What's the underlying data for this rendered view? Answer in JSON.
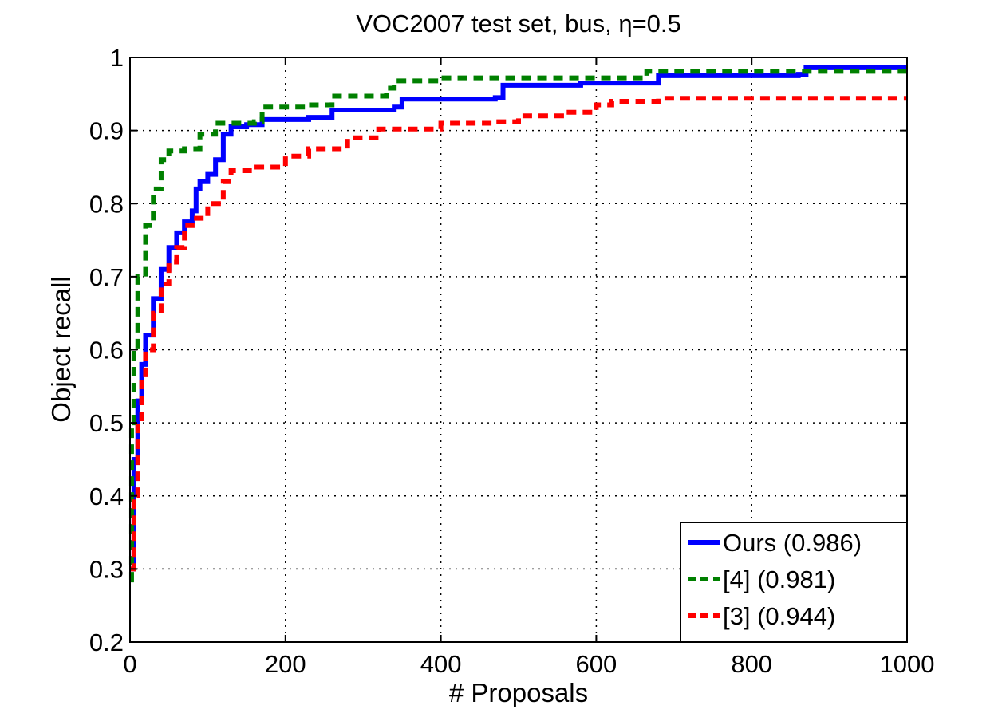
{
  "chart_data": {
    "type": "line",
    "title": "VOC2007 test set, bus, η=0.5",
    "xlabel": "# Proposals",
    "ylabel": "Object recall",
    "xlim": [
      0,
      1000
    ],
    "ylim": [
      0.2,
      1.0
    ],
    "xticks": [
      "0",
      "200",
      "400",
      "600",
      "800",
      "1000"
    ],
    "yticks": [
      "0.2",
      "0.3",
      "0.4",
      "0.5",
      "0.6",
      "0.7",
      "0.8",
      "0.9",
      "1"
    ],
    "grid": true,
    "legend_position": "bottom-right",
    "series": [
      {
        "name": "Ours (0.986)",
        "color": "#0000ff",
        "dash": "solid",
        "points": [
          [
            1,
            0.3
          ],
          [
            5,
            0.45
          ],
          [
            10,
            0.53
          ],
          [
            15,
            0.58
          ],
          [
            20,
            0.62
          ],
          [
            30,
            0.67
          ],
          [
            40,
            0.71
          ],
          [
            50,
            0.74
          ],
          [
            60,
            0.76
          ],
          [
            70,
            0.775
          ],
          [
            80,
            0.79
          ],
          [
            85,
            0.82
          ],
          [
            90,
            0.83
          ],
          [
            100,
            0.84
          ],
          [
            110,
            0.86
          ],
          [
            120,
            0.895
          ],
          [
            130,
            0.905
          ],
          [
            150,
            0.908
          ],
          [
            170,
            0.915
          ],
          [
            230,
            0.918
          ],
          [
            260,
            0.928
          ],
          [
            340,
            0.932
          ],
          [
            350,
            0.943
          ],
          [
            470,
            0.945
          ],
          [
            480,
            0.962
          ],
          [
            580,
            0.965
          ],
          [
            680,
            0.975
          ],
          [
            860,
            0.977
          ],
          [
            870,
            0.986
          ],
          [
            1000,
            0.986
          ]
        ]
      },
      {
        "name": "[4] (0.981)",
        "color": "#008000",
        "dash": "dashed",
        "points": [
          [
            0,
            0.285
          ],
          [
            2,
            0.5
          ],
          [
            5,
            0.6
          ],
          [
            10,
            0.7
          ],
          [
            20,
            0.77
          ],
          [
            30,
            0.82
          ],
          [
            40,
            0.86
          ],
          [
            50,
            0.872
          ],
          [
            70,
            0.875
          ],
          [
            90,
            0.895
          ],
          [
            110,
            0.91
          ],
          [
            160,
            0.912
          ],
          [
            170,
            0.932
          ],
          [
            230,
            0.935
          ],
          [
            260,
            0.947
          ],
          [
            330,
            0.958
          ],
          [
            340,
            0.968
          ],
          [
            400,
            0.972
          ],
          [
            660,
            0.975
          ],
          [
            665,
            0.981
          ],
          [
            1000,
            0.981
          ]
        ]
      },
      {
        "name": "[3] (0.944)",
        "color": "#ff0000",
        "dash": "dashed",
        "points": [
          [
            0,
            0.3
          ],
          [
            5,
            0.4
          ],
          [
            10,
            0.5
          ],
          [
            15,
            0.56
          ],
          [
            20,
            0.6
          ],
          [
            30,
            0.65
          ],
          [
            40,
            0.69
          ],
          [
            50,
            0.72
          ],
          [
            60,
            0.74
          ],
          [
            70,
            0.77
          ],
          [
            80,
            0.78
          ],
          [
            100,
            0.8
          ],
          [
            120,
            0.83
          ],
          [
            130,
            0.845
          ],
          [
            160,
            0.85
          ],
          [
            200,
            0.865
          ],
          [
            230,
            0.875
          ],
          [
            280,
            0.89
          ],
          [
            320,
            0.902
          ],
          [
            400,
            0.91
          ],
          [
            470,
            0.912
          ],
          [
            500,
            0.92
          ],
          [
            560,
            0.925
          ],
          [
            600,
            0.935
          ],
          [
            620,
            0.94
          ],
          [
            680,
            0.944
          ],
          [
            1000,
            0.944
          ]
        ]
      }
    ]
  }
}
